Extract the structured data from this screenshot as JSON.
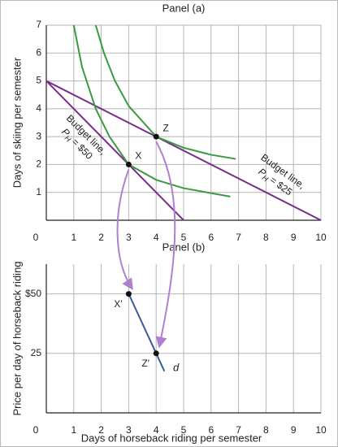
{
  "chart_data": [
    {
      "type": "line",
      "title": "Panel (a)",
      "y_label": "Days of skiing per semester",
      "xlim": [
        0,
        10
      ],
      "xticks": [
        0,
        1,
        2,
        3,
        4,
        5,
        6,
        7,
        8,
        9,
        10
      ],
      "ylim": [
        0,
        7
      ],
      "yticks": [
        1,
        2,
        3,
        4,
        5,
        6,
        7
      ],
      "grid": true,
      "series": [
        {
          "color": "#7b2d8e",
          "x": [
            0,
            5
          ],
          "values": [
            5,
            0
          ],
          "label": {
            "text": "Budget line,",
            "symbol": "P",
            "subscript": "H",
            "rest": "= $50"
          }
        },
        {
          "color": "#7b2d8e",
          "x": [
            0,
            10
          ],
          "values": [
            5,
            0
          ],
          "label": {
            "text": "Budget line,",
            "symbol": "P",
            "subscript": "H",
            "rest": "= $25"
          }
        },
        {
          "color": "#3a9a3f",
          "x": [
            1,
            1.3,
            1.8,
            2.3,
            3,
            4,
            5,
            6.7
          ],
          "values": [
            7,
            5.5,
            4,
            3,
            2,
            1.45,
            1.15,
            0.85
          ]
        },
        {
          "color": "#3a9a3f",
          "x": [
            1.8,
            2.1,
            2.5,
            3,
            4,
            5,
            6,
            6.9
          ],
          "values": [
            7,
            6,
            5,
            4.1,
            3,
            2.6,
            2.35,
            2.2
          ]
        }
      ],
      "points": [
        {
          "label": "X",
          "x": 3,
          "y": 2
        },
        {
          "label": "Z",
          "x": 4,
          "y": 3
        }
      ]
    },
    {
      "type": "line",
      "title": "Panel (b)",
      "y_label": "Price per day of horseback riding",
      "x_label": "Days of horseback riding per semester",
      "xlim": [
        0,
        10
      ],
      "xticks": [
        0,
        1,
        2,
        3,
        4,
        5,
        6,
        7,
        8,
        9,
        10
      ],
      "ylim": [
        0,
        62.5
      ],
      "yticks": [
        25,
        {
          "value": 50,
          "label": "$50"
        }
      ],
      "grid": true,
      "series": [
        {
          "color": "#3b5b9b",
          "x": [
            3,
            4,
            4.3
          ],
          "values": [
            50,
            25,
            17.5
          ],
          "label": {
            "text": "d"
          }
        }
      ],
      "points": [
        {
          "label": "X′",
          "x": 3,
          "y": 50
        },
        {
          "label": "Z′",
          "x": 4,
          "y": 25
        }
      ]
    }
  ]
}
